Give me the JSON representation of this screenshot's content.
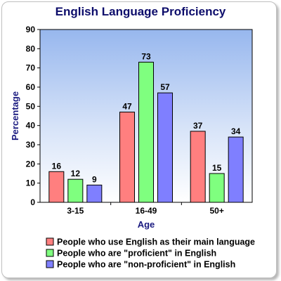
{
  "chart_data": {
    "type": "bar",
    "title": "English Language Proficiency",
    "xlabel": "Age",
    "ylabel": "Percentage",
    "categories": [
      "3-15",
      "16-49",
      "50+"
    ],
    "ylim": [
      0,
      90
    ],
    "yticks": [
      0,
      10,
      20,
      30,
      40,
      50,
      60,
      70,
      80,
      90
    ],
    "grid": false,
    "legend_position": "bottom",
    "background": "gradient-blue-to-white",
    "series": [
      {
        "name": "People who use English as their main language",
        "color": "#ff7f7f",
        "values": [
          16,
          47,
          37
        ]
      },
      {
        "name": "People who are \"proficient\" in English",
        "color": "#7fff7f",
        "values": [
          12,
          73,
          15
        ]
      },
      {
        "name": "People who are \"non-proficient\" in English",
        "color": "#7f7fff",
        "values": [
          9,
          57,
          34
        ]
      }
    ]
  }
}
